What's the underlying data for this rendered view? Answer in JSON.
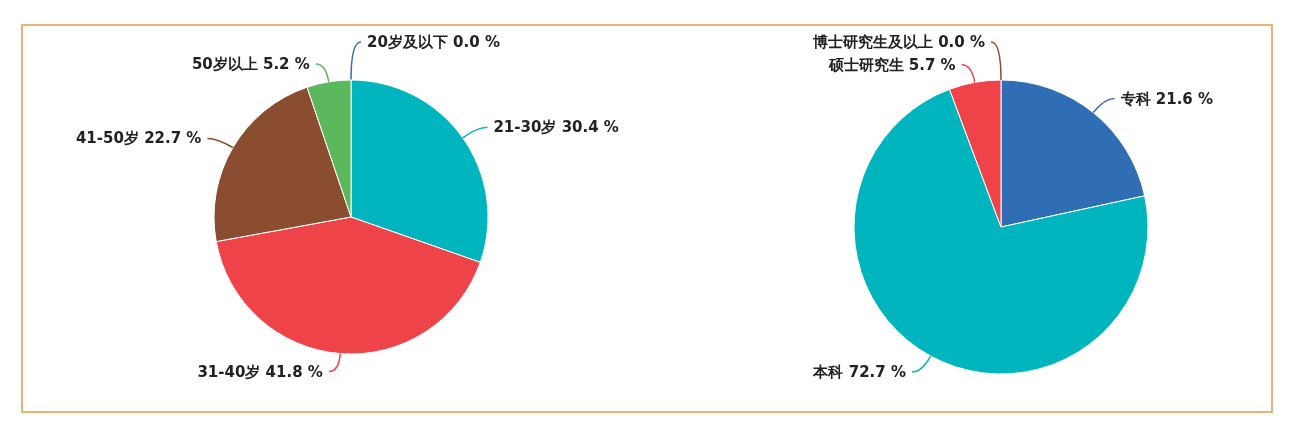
{
  "chart_data": [
    {
      "type": "pie",
      "categories": [
        "20岁及以下",
        "21-30岁",
        "31-40岁",
        "41-50岁",
        "50岁以上"
      ],
      "values": [
        0.0,
        30.4,
        41.8,
        22.7,
        5.2
      ],
      "value_labels": [
        "0.0 %",
        "30.4 %",
        "41.8 %",
        "22.7 %",
        "5.2 %"
      ],
      "colors": [
        "#2f6db5",
        "#00b5bd",
        "#ee4449",
        "#8b4d2f",
        "#5cb85c"
      ]
    },
    {
      "type": "pie",
      "categories": [
        "专科",
        "本科",
        "硕士研究生",
        "博士研究生及以上"
      ],
      "values": [
        21.6,
        72.7,
        5.7,
        0.0
      ],
      "value_labels": [
        "21.6 %",
        "72.7 %",
        "5.7 %",
        "0.0 %"
      ],
      "colors": [
        "#2f6db5",
        "#00b5bd",
        "#ee4449",
        "#8b4d2f"
      ]
    }
  ]
}
